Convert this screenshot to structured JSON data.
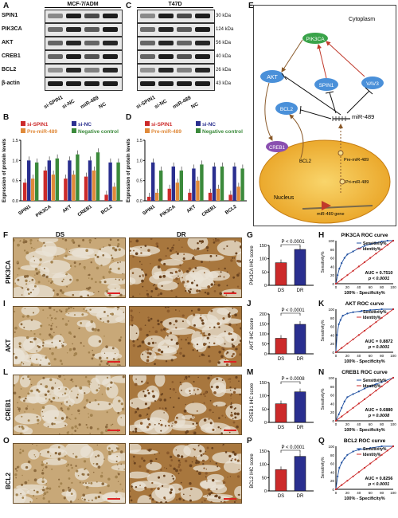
{
  "panel_letters": [
    "A",
    "B",
    "C",
    "D",
    "E",
    "F",
    "G",
    "H",
    "I",
    "J",
    "K",
    "L",
    "M",
    "N",
    "O",
    "P",
    "Q"
  ],
  "blot_A": {
    "title": "MCF-7/ADM",
    "rows": [
      "SPIN1",
      "PIK3CA",
      "AKT",
      "CREB1",
      "BCL2",
      "β-actin"
    ],
    "lanes": [
      "si-SPIN1",
      "si-NC",
      "miR-489",
      "NC"
    ]
  },
  "blot_C": {
    "title": "T47D",
    "kda": [
      "30 kDa",
      "124 kDa",
      "56 kDa",
      "40 kDa",
      "26 kDa",
      "43 kDa"
    ],
    "lanes": [
      "si-SPIN1",
      "si-NC",
      "miR-489",
      "NC"
    ]
  },
  "diagram_E": {
    "cytoplasm": "Cytoplasm",
    "nucleus": "Nucleus",
    "nodes": [
      "PIK3CA",
      "AKT",
      "SPIN1",
      "VAV3",
      "BCL2",
      "CREB1",
      "miR-489"
    ],
    "labels": [
      "BCL2",
      "Pre-miR-489",
      "Pri-miR-489",
      "miR-489 gene"
    ]
  },
  "ihc": {
    "col_DS": "DS",
    "col_DR": "DR",
    "rows": [
      "PIK3CA",
      "AKT",
      "CREB1",
      "BCL2"
    ]
  },
  "colors": {
    "red": "#cc2a2a",
    "blue": "#2a2f8f",
    "orange": "#e08a3a",
    "green": "#3b8a3b",
    "roc_blue": "#1f4fa0",
    "roc_red": "#cc2a2a"
  },
  "chart_data": [
    {
      "panel": "B",
      "type": "bar",
      "ylabel": "Expression of protein levels",
      "categories": [
        "SPIN1",
        "PIK3CA",
        "AKT",
        "CREB1",
        "BCL2"
      ],
      "ylim": [
        0,
        1.5
      ],
      "yticks": [
        "0.0",
        "0.5",
        "1.0",
        "1.5"
      ],
      "series": [
        {
          "name": "si-SPIN1",
          "values": [
            0.45,
            0.75,
            0.55,
            0.6,
            0.15
          ]
        },
        {
          "name": "si-NC",
          "values": [
            1.0,
            1.0,
            1.0,
            1.0,
            0.95
          ]
        },
        {
          "name": "Pre-miR-489",
          "values": [
            0.55,
            0.65,
            0.65,
            0.75,
            0.35
          ]
        },
        {
          "name": "Negative control",
          "values": [
            0.95,
            1.05,
            1.15,
            1.2,
            0.95
          ]
        }
      ]
    },
    {
      "panel": "D",
      "type": "bar",
      "ylabel": "Expression of protein levels",
      "categories": [
        "SPIN1",
        "PIK3CA",
        "AKT",
        "CREB1",
        "BCL2"
      ],
      "ylim": [
        0,
        1.5
      ],
      "yticks": [
        "0.0",
        "0.5",
        "1.0",
        "1.5"
      ],
      "series": [
        {
          "name": "si-SPIN1",
          "values": [
            0.1,
            0.3,
            0.2,
            0.2,
            0.15
          ]
        },
        {
          "name": "si-NC",
          "values": [
            0.95,
            0.85,
            0.8,
            0.85,
            0.85
          ]
        },
        {
          "name": "Pre-miR-489",
          "values": [
            0.2,
            0.45,
            0.5,
            0.3,
            0.35
          ]
        },
        {
          "name": "Negative control",
          "values": [
            0.75,
            0.75,
            0.9,
            0.85,
            0.8
          ]
        }
      ]
    },
    {
      "panel": "G",
      "type": "bar",
      "ylabel": "PIK3CA IHC score",
      "categories": [
        "DS",
        "DR"
      ],
      "values": [
        85,
        135
      ],
      "ylim": [
        0,
        150
      ],
      "yticks": [
        "0",
        "50",
        "100",
        "150"
      ],
      "annotation": "P < 0.0001"
    },
    {
      "panel": "J",
      "type": "bar",
      "ylabel": "AKT IHC score",
      "categories": [
        "DS",
        "DR"
      ],
      "values": [
        78,
        148
      ],
      "ylim": [
        0,
        200
      ],
      "yticks": [
        "0",
        "50",
        "100",
        "150",
        "200"
      ],
      "annotation": "P < 0.0001"
    },
    {
      "panel": "M",
      "type": "bar",
      "ylabel": "CREB1 IHC score",
      "categories": [
        "DS",
        "DR"
      ],
      "values": [
        70,
        115
      ],
      "ylim": [
        0,
        150
      ],
      "yticks": [
        "0",
        "50",
        "100",
        "150"
      ],
      "annotation": "P = 0.0008"
    },
    {
      "panel": "P",
      "type": "bar",
      "ylabel": "BCL2 IHC score",
      "categories": [
        "DS",
        "DR"
      ],
      "values": [
        80,
        130
      ],
      "ylim": [
        0,
        150
      ],
      "yticks": [
        "0",
        "50",
        "100",
        "150"
      ],
      "annotation": "P < 0.0001"
    },
    {
      "panel": "H",
      "type": "line",
      "title": "PIK3CA ROC curve",
      "xlabel": "100% - Specificity%",
      "ylabel": "Sensitivity%",
      "xlim": [
        0,
        100
      ],
      "ylim": [
        0,
        100
      ],
      "ticks": [
        "0",
        "20",
        "40",
        "60",
        "80",
        "100"
      ],
      "series": [
        {
          "name": "Sensitivity%",
          "x": [
            0,
            3,
            6,
            10,
            15,
            20,
            30,
            40,
            50,
            60,
            70,
            80,
            90,
            100
          ],
          "y": [
            0,
            20,
            35,
            48,
            60,
            68,
            75,
            82,
            88,
            92,
            95,
            98,
            100,
            100
          ]
        },
        {
          "name": "Identity%",
          "x": [
            0,
            10,
            20,
            30,
            40,
            50,
            60,
            70,
            80,
            90,
            100
          ],
          "y": [
            0,
            10,
            20,
            30,
            40,
            50,
            60,
            70,
            80,
            90,
            100
          ]
        }
      ],
      "auc": "AUC = 0.7510",
      "p": "p < 0.0001"
    },
    {
      "panel": "K",
      "type": "line",
      "title": "AKT ROC curve",
      "xlabel": "100% - Specificity%",
      "ylabel": "Sensitivity%",
      "xlim": [
        0,
        100
      ],
      "ylim": [
        0,
        100
      ],
      "ticks": [
        "0",
        "20",
        "40",
        "60",
        "80",
        "100"
      ],
      "series": [
        {
          "name": "Sensitivity%",
          "x": [
            0,
            2,
            5,
            8,
            12,
            20,
            30,
            45,
            60,
            80,
            100
          ],
          "y": [
            0,
            40,
            65,
            75,
            85,
            90,
            93,
            96,
            98,
            100,
            100
          ]
        },
        {
          "name": "Identity%",
          "x": [
            0,
            10,
            20,
            30,
            40,
            50,
            60,
            70,
            80,
            90,
            100
          ],
          "y": [
            0,
            10,
            20,
            30,
            40,
            50,
            60,
            70,
            80,
            90,
            100
          ]
        }
      ],
      "auc": "AUC = 0.8872",
      "p": "p = 0.0001"
    },
    {
      "panel": "N",
      "type": "line",
      "title": "CREB1 ROC curve",
      "xlabel": "100% - Specificity%",
      "ylabel": "Sensitivity%",
      "xlim": [
        0,
        100
      ],
      "ylim": [
        0,
        100
      ],
      "ticks": [
        "0",
        "20",
        "40",
        "60",
        "80",
        "100"
      ],
      "series": [
        {
          "name": "Sensitivity%",
          "x": [
            0,
            5,
            10,
            15,
            20,
            30,
            40,
            50,
            60,
            70,
            80,
            100
          ],
          "y": [
            0,
            15,
            30,
            45,
            55,
            62,
            68,
            75,
            80,
            85,
            90,
            100
          ]
        },
        {
          "name": "Identity%",
          "x": [
            0,
            10,
            20,
            30,
            40,
            50,
            60,
            70,
            80,
            90,
            100
          ],
          "y": [
            0,
            10,
            20,
            30,
            40,
            50,
            60,
            70,
            80,
            90,
            100
          ]
        }
      ],
      "auc": "AUC = 0.6880",
      "p": "p = 0.0008"
    },
    {
      "panel": "Q",
      "type": "line",
      "title": "BCL2 ROC curve",
      "xlabel": "100% - Specificity%",
      "ylabel": "Sensitivity%",
      "xlim": [
        0,
        100
      ],
      "ylim": [
        0,
        100
      ],
      "ticks": [
        "0",
        "20",
        "40",
        "60",
        "80",
        "100"
      ],
      "series": [
        {
          "name": "Sensitivity%",
          "x": [
            0,
            3,
            6,
            10,
            15,
            20,
            30,
            40,
            60,
            80,
            100
          ],
          "y": [
            0,
            30,
            50,
            62,
            72,
            80,
            88,
            92,
            96,
            100,
            100
          ]
        },
        {
          "name": "Identity%",
          "x": [
            0,
            10,
            20,
            30,
            40,
            50,
            60,
            70,
            80,
            90,
            100
          ],
          "y": [
            0,
            10,
            20,
            30,
            40,
            50,
            60,
            70,
            80,
            90,
            100
          ]
        }
      ],
      "auc": "AUC = 0.8256",
      "p": "p < 0.0001"
    }
  ]
}
